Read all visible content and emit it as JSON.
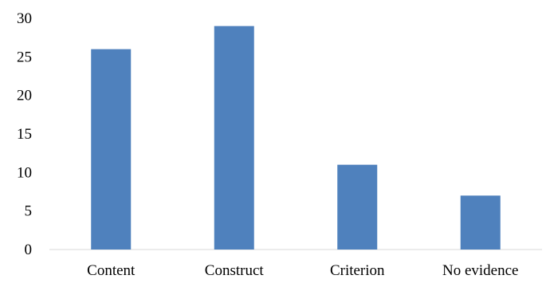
{
  "chart_data": {
    "type": "bar",
    "title": "",
    "xlabel": "",
    "ylabel": "",
    "categories": [
      "Content",
      "Construct",
      "Criterion",
      "No evidence"
    ],
    "values": [
      26,
      29,
      11,
      7
    ],
    "ylim": [
      0,
      30
    ],
    "yticks": [
      "0",
      "5",
      "10",
      "15",
      "20",
      "25",
      "30"
    ],
    "grid": false,
    "legend": "none",
    "bar_color": "#4f81bd",
    "axis_color": "#d9d9d9"
  }
}
